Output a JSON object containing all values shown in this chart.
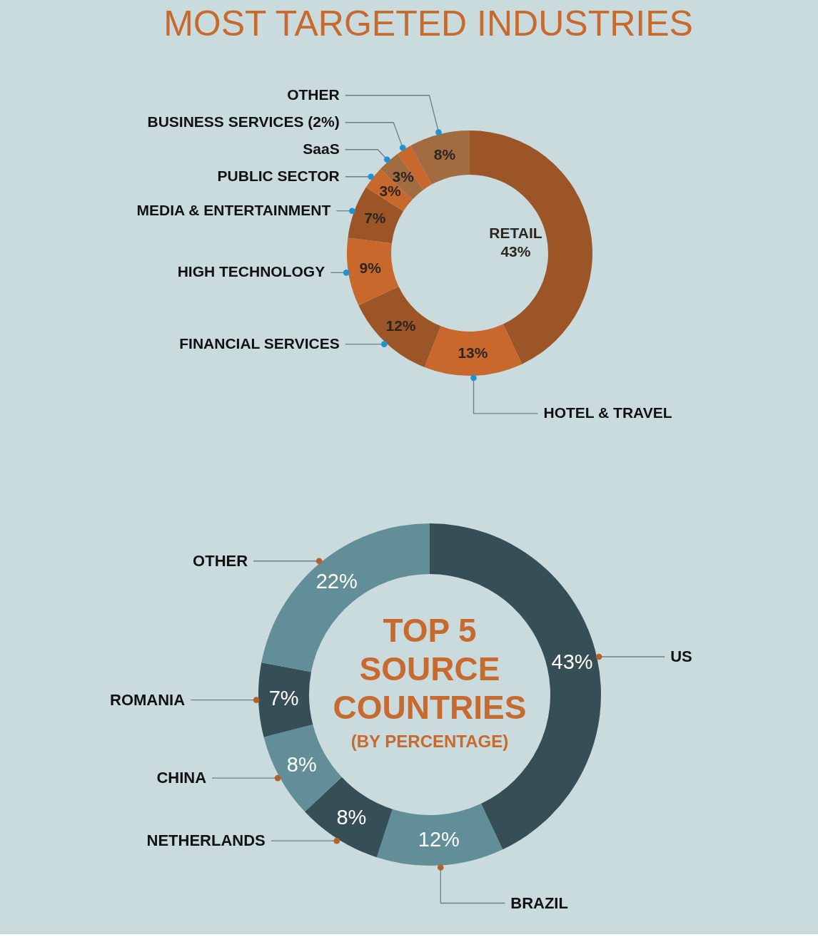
{
  "chart_data": [
    {
      "type": "donut",
      "title": "MOST TARGETED INDUSTRIES",
      "categories": [
        "RETAIL",
        "HOTEL & TRAVEL",
        "FINANCIAL SERVICES",
        "HIGH TECHNOLOGY",
        "MEDIA & ENTERTAINMENT",
        "PUBLIC SECTOR",
        "SaaS",
        "BUSINESS SERVICES (2%)",
        "OTHER"
      ],
      "values": [
        43,
        13,
        12,
        9,
        7,
        3,
        3,
        2,
        8
      ],
      "colors": [
        "#9c5526",
        "#c8682d",
        "#9c5526",
        "#c8682d",
        "#9c5526",
        "#c8682d",
        "#a36b40",
        "#c8682d",
        "#a36b40"
      ],
      "value_labels": [
        "43%",
        "13%",
        "12%",
        "9%",
        "7%",
        "3%",
        "3%",
        null,
        "8%"
      ]
    },
    {
      "type": "donut",
      "title": "TOP 5 SOURCE COUNTRIES",
      "subtitle": "(BY PERCENTAGE)",
      "categories": [
        "US",
        "BRAZIL",
        "NETHERLANDS",
        "CHINA",
        "ROMANIA",
        "OTHER"
      ],
      "values": [
        43,
        12,
        8,
        8,
        7,
        22
      ],
      "colors": [
        "#364f57",
        "#628e97",
        "#364f57",
        "#628e97",
        "#364f57",
        "#628e97"
      ],
      "value_labels": [
        "43%",
        "12%",
        "8%",
        "8%",
        "7%",
        "22%"
      ]
    }
  ]
}
